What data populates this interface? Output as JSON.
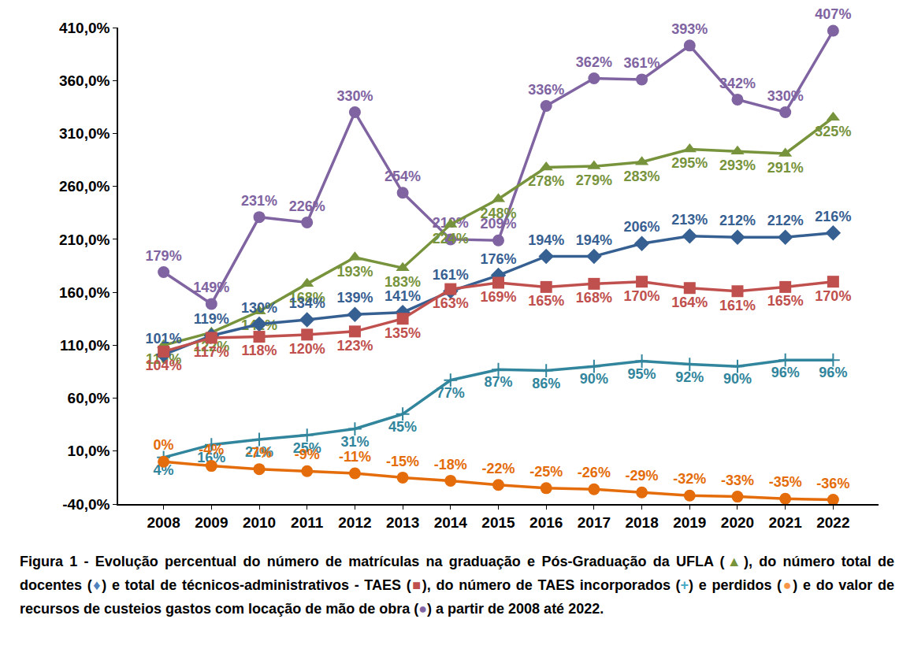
{
  "chart_data": {
    "type": "line",
    "categories": [
      "2008",
      "2009",
      "2010",
      "2011",
      "2012",
      "2013",
      "2014",
      "2015",
      "2016",
      "2017",
      "2018",
      "2019",
      "2020",
      "2021",
      "2022"
    ],
    "ylim": [
      -40,
      410
    ],
    "yticks": [
      {
        "value": -40,
        "label": "-40,0%"
      },
      {
        "value": 10,
        "label": "10,0%"
      },
      {
        "value": 60,
        "label": "60,0%"
      },
      {
        "value": 110,
        "label": "110,0%"
      },
      {
        "value": 160,
        "label": "160,0%"
      },
      {
        "value": 210,
        "label": "210,0%"
      },
      {
        "value": 260,
        "label": "260,0%"
      },
      {
        "value": 310,
        "label": "310,0%"
      },
      {
        "value": 360,
        "label": "360,0%"
      },
      {
        "value": 410,
        "label": "410,0%"
      }
    ],
    "grid": false,
    "data_labels": true,
    "series": [
      {
        "color": "#8064a2",
        "marker": "circle",
        "values": [
          179,
          149,
          231,
          226,
          330,
          254,
          210,
          209,
          336,
          362,
          361,
          393,
          342,
          330,
          407
        ],
        "value_labels": [
          "179%",
          "149%",
          "231%",
          "226%",
          "330%",
          "254%",
          "210%",
          "209%",
          "336%",
          "362%",
          "361%",
          "393%",
          "342%",
          "330%",
          "407%"
        ]
      },
      {
        "color": "#77933c",
        "marker": "triangle-up",
        "values": [
          110,
          122,
          142,
          168,
          193,
          183,
          224,
          248,
          278,
          279,
          283,
          295,
          293,
          291,
          325
        ],
        "value_labels": [
          "110%",
          "122%",
          "142%",
          "168%",
          "193%",
          "183%",
          "224%",
          "248%",
          "278%",
          "279%",
          "283%",
          "295%",
          "293%",
          "291%",
          "325%"
        ]
      },
      {
        "color": "#376092",
        "marker": "diamond",
        "values": [
          101,
          119,
          130,
          134,
          139,
          141,
          161,
          176,
          194,
          194,
          206,
          213,
          212,
          212,
          216
        ],
        "value_labels": [
          "101%",
          "119%",
          "130%",
          "134%",
          "139%",
          "141%",
          "161%",
          "176%",
          "194%",
          "194%",
          "206%",
          "213%",
          "212%",
          "212%",
          "216%"
        ]
      },
      {
        "color": "#c0504d",
        "marker": "square",
        "values": [
          104,
          117,
          118,
          120,
          123,
          135,
          163,
          169,
          165,
          168,
          170,
          164,
          161,
          165,
          170
        ],
        "value_labels": [
          "104%",
          "117%",
          "118%",
          "120%",
          "123%",
          "135%",
          "163%",
          "169%",
          "165%",
          "168%",
          "170%",
          "164%",
          "161%",
          "165%",
          "170%"
        ]
      },
      {
        "color": "#31859c",
        "marker": "cross",
        "values": [
          4,
          16,
          21,
          25,
          31,
          45,
          77,
          87,
          86,
          90,
          95,
          92,
          90,
          96,
          96
        ],
        "value_labels": [
          "4%",
          "16%",
          "21%",
          "25%",
          "31%",
          "45%",
          "77%",
          "87%",
          "86%",
          "90%",
          "95%",
          "92%",
          "90%",
          "96%",
          "96%"
        ]
      },
      {
        "color": "#e46c0a",
        "marker": "circle",
        "values": [
          0,
          -4,
          -7,
          -9,
          -11,
          -15,
          -18,
          -22,
          -25,
          -26,
          -29,
          -32,
          -33,
          -35,
          -36
        ],
        "value_labels": [
          "0%",
          "-4%",
          "-7%",
          "-9%",
          "-11%",
          "-15%",
          "-18%",
          "-22%",
          "-25%",
          "-26%",
          "-29%",
          "-32%",
          "-33%",
          "-35%",
          "-36%"
        ]
      }
    ],
    "caption": [
      {
        "text": "Figura 1 - Evolução percentual do número de matrículas na graduação e Pós-Graduação da UFLA ("
      },
      {
        "text": "▲",
        "color": "#77933c"
      },
      {
        "text": "), do número total de docentes ("
      },
      {
        "text": "♦",
        "color": "#4f81bd"
      },
      {
        "text": ") e total de técnicos-administrativos - TAES ("
      },
      {
        "text": "■",
        "color": "#c0504d"
      },
      {
        "text": "), do número de TAES incorporados ("
      },
      {
        "text": "+",
        "color": "#4bacc6"
      },
      {
        "text": ") e perdidos ("
      },
      {
        "text": "●",
        "color": "#f79646"
      },
      {
        "text": ") e do valor de recursos de custeios gastos com locação de mão de obra ("
      },
      {
        "text": "●",
        "color": "#8064a2"
      },
      {
        "text": ") a partir de 2008 até 2022."
      }
    ]
  }
}
